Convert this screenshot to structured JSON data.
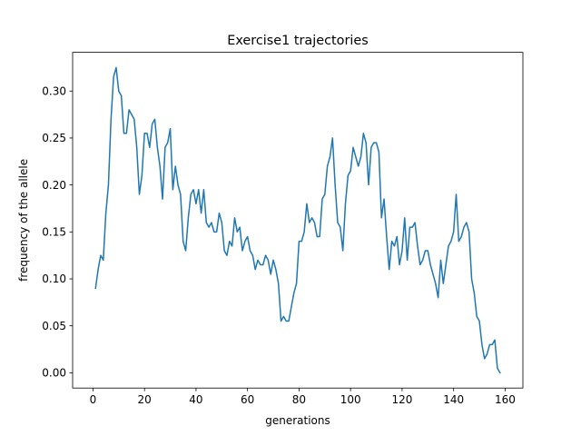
{
  "chart_data": {
    "type": "line",
    "title": "Exercise1 trajectories",
    "xlabel": "generations",
    "ylabel": "frequency of the allele",
    "xlim": [
      -7.9,
      166.9
    ],
    "ylim": [
      -0.01625,
      0.34125
    ],
    "xticks": [
      0,
      20,
      40,
      60,
      80,
      100,
      120,
      140,
      160
    ],
    "xtick_labels": [
      "0",
      "20",
      "40",
      "60",
      "80",
      "100",
      "120",
      "140",
      "160"
    ],
    "yticks": [
      0.0,
      0.05,
      0.1,
      0.15,
      0.2,
      0.25,
      0.3
    ],
    "ytick_labels": [
      "0.00",
      "0.05",
      "0.10",
      "0.15",
      "0.20",
      "0.25",
      "0.30"
    ],
    "grid": false,
    "series": [
      {
        "color": "#1f77b4",
        "x_start": 1,
        "values": [
          0.09,
          0.11,
          0.125,
          0.12,
          0.17,
          0.2,
          0.27,
          0.315,
          0.325,
          0.3,
          0.295,
          0.255,
          0.255,
          0.28,
          0.275,
          0.27,
          0.24,
          0.19,
          0.21,
          0.255,
          0.255,
          0.24,
          0.265,
          0.27,
          0.24,
          0.22,
          0.185,
          0.24,
          0.245,
          0.26,
          0.195,
          0.22,
          0.2,
          0.19,
          0.14,
          0.13,
          0.165,
          0.19,
          0.195,
          0.18,
          0.195,
          0.17,
          0.195,
          0.16,
          0.155,
          0.16,
          0.15,
          0.15,
          0.17,
          0.16,
          0.13,
          0.125,
          0.14,
          0.135,
          0.165,
          0.15,
          0.155,
          0.13,
          0.14,
          0.145,
          0.13,
          0.125,
          0.11,
          0.12,
          0.115,
          0.115,
          0.125,
          0.12,
          0.105,
          0.12,
          0.11,
          0.095,
          0.055,
          0.06,
          0.055,
          0.055,
          0.07,
          0.085,
          0.095,
          0.14,
          0.14,
          0.15,
          0.18,
          0.16,
          0.165,
          0.16,
          0.145,
          0.145,
          0.185,
          0.19,
          0.22,
          0.23,
          0.25,
          0.2,
          0.16,
          0.155,
          0.13,
          0.18,
          0.21,
          0.215,
          0.24,
          0.23,
          0.22,
          0.23,
          0.255,
          0.245,
          0.2,
          0.24,
          0.245,
          0.245,
          0.235,
          0.165,
          0.185,
          0.145,
          0.11,
          0.14,
          0.135,
          0.145,
          0.115,
          0.13,
          0.165,
          0.12,
          0.155,
          0.155,
          0.16,
          0.135,
          0.115,
          0.12,
          0.13,
          0.13,
          0.115,
          0.105,
          0.095,
          0.08,
          0.12,
          0.095,
          0.115,
          0.135,
          0.14,
          0.15,
          0.19,
          0.14,
          0.145,
          0.155,
          0.16,
          0.15,
          0.1,
          0.085,
          0.06,
          0.055,
          0.03,
          0.015,
          0.02,
          0.03,
          0.03,
          0.035,
          0.005,
          0.0
        ]
      }
    ]
  }
}
